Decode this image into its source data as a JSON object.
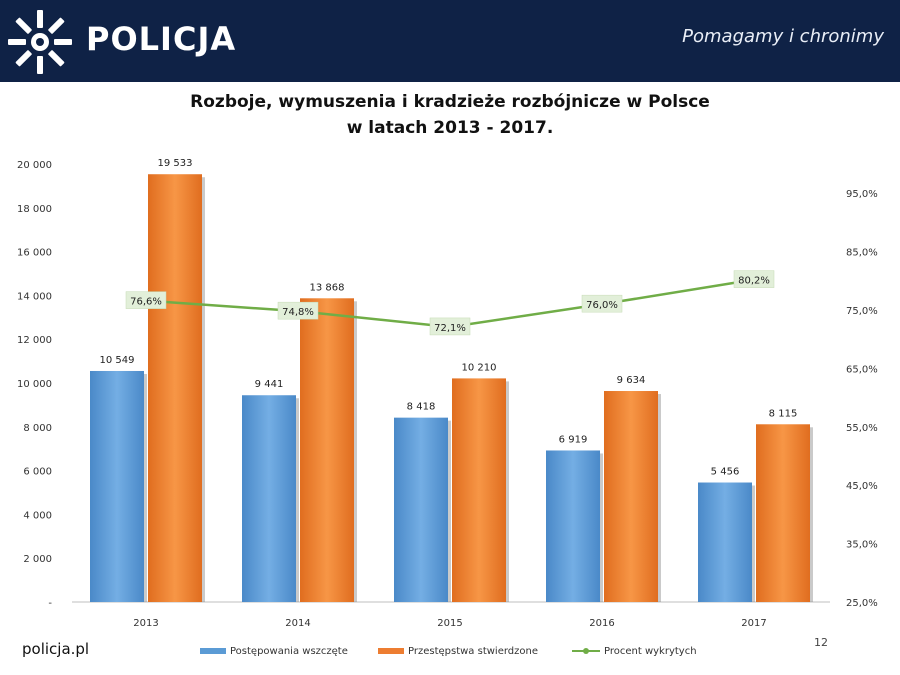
{
  "header": {
    "brand": "POLICJA",
    "slogan": "Pomagamy i chronimy",
    "logo_icon": "police-star-icon"
  },
  "title_lines": [
    "Rozboje, wymuszenia i kradzieże rozbójnicze w Polsce",
    "w latach 2013 - 2017."
  ],
  "footer": {
    "site": "policja.pl",
    "page": "12"
  },
  "chart_data": {
    "type": "bar",
    "categories": [
      "2013",
      "2014",
      "2015",
      "2016",
      "2017"
    ],
    "series": [
      {
        "name": "Postępowania wszczęte",
        "kind": "bar",
        "axis": "left",
        "color": "#5b9bd5",
        "values": [
          10549,
          9441,
          8418,
          6919,
          5456
        ],
        "labels": [
          "10 549",
          "9 441",
          "8 418",
          "6 919",
          "5 456"
        ]
      },
      {
        "name": "Przestępstwa stwierdzone",
        "kind": "bar",
        "axis": "left",
        "color": "#ed7d31",
        "values": [
          19533,
          13868,
          10210,
          9634,
          8115
        ],
        "labels": [
          "19 533",
          "13 868",
          "10 210",
          "9 634",
          "8 115"
        ]
      },
      {
        "name": "Procent wykrytych",
        "kind": "line",
        "axis": "right",
        "color": "#70ad47",
        "values": [
          76.6,
          74.8,
          72.1,
          76.0,
          80.2
        ],
        "labels": [
          "76,6%",
          "74,8%",
          "72,1%",
          "76,0%",
          "80,2%"
        ]
      }
    ],
    "y_left": {
      "min": 0,
      "max": 20000,
      "ticks": [
        0,
        2000,
        4000,
        6000,
        8000,
        10000,
        12000,
        14000,
        16000,
        18000,
        20000
      ],
      "tick_labels": [
        "-",
        "2 000",
        "4 000",
        "6 000",
        "8 000",
        "10 000",
        "12 000",
        "14 000",
        "16 000",
        "18 000",
        "20 000"
      ]
    },
    "y_right": {
      "min": 25,
      "max": 100,
      "ticks": [
        25,
        35,
        45,
        55,
        65,
        75,
        85,
        95
      ],
      "tick_labels": [
        "25,0%",
        "35,0%",
        "45,0%",
        "55,0%",
        "65,0%",
        "75,0%",
        "85,0%",
        "95,0%"
      ]
    },
    "legend_position": "bottom",
    "grid": false
  }
}
